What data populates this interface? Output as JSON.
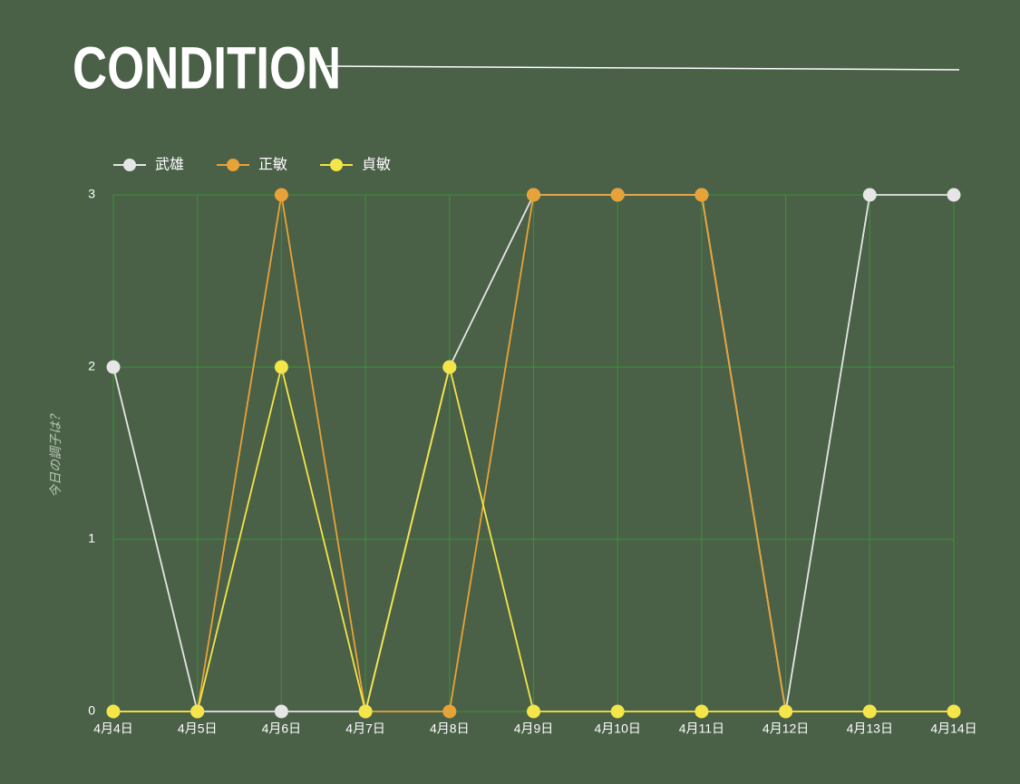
{
  "chart_data": {
    "type": "line",
    "title": "CONDITION",
    "y_label": "今日の調子は？",
    "categories": [
      "4月4日",
      "4月5日",
      "4月6日",
      "4月7日",
      "4月8日",
      "4月9日",
      "4月10日",
      "4月11日",
      "4月12日",
      "4月13日",
      "4月14日"
    ],
    "series": [
      {
        "name": "武雄",
        "color": "#e6e6e6",
        "values": [
          2,
          0,
          0,
          0,
          2,
          3,
          3,
          3,
          0,
          3,
          3
        ]
      },
      {
        "name": "正敏",
        "color": "#e8a338",
        "values": [
          0,
          0,
          3,
          0,
          0,
          3,
          3,
          3,
          0,
          0,
          0
        ]
      },
      {
        "name": "貞敏",
        "color": "#f4e548",
        "values": [
          0,
          0,
          2,
          0,
          2,
          0,
          0,
          0,
          0,
          0,
          0
        ]
      }
    ],
    "ylim": [
      0,
      3
    ],
    "yticks": [
      0,
      1,
      2,
      3
    ],
    "grid": true,
    "legend": "top-left"
  }
}
